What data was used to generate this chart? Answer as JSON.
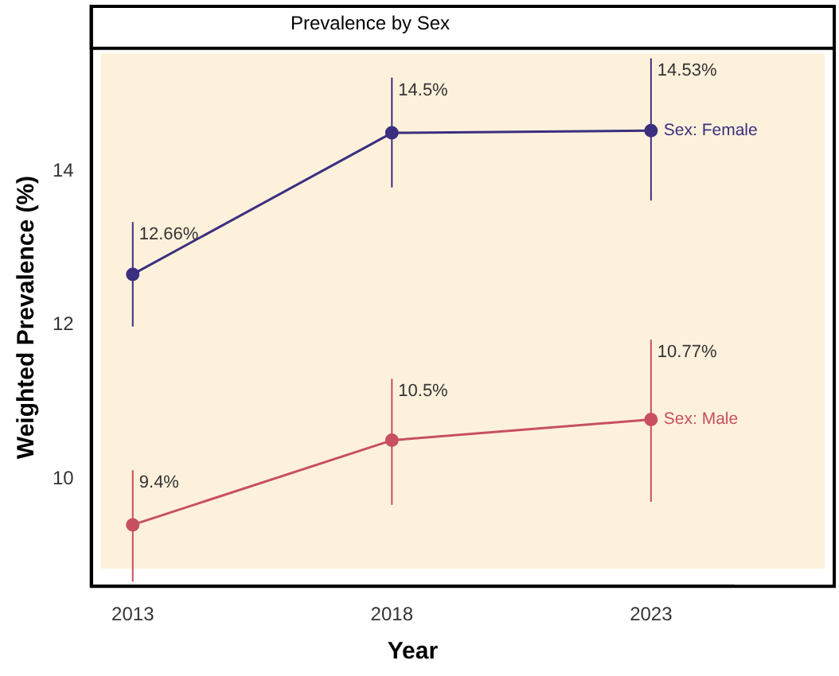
{
  "chart_data": {
    "type": "line",
    "title": "Prevalence by Sex",
    "xlabel": "Year",
    "ylabel": "Weighted Prevalence (%)",
    "x": [
      2013,
      2018,
      2023
    ],
    "xlim": [
      2012.2,
      2024.6
    ],
    "xticks": [
      2013,
      2018,
      2023
    ],
    "ylim": [
      8.6,
      15.6
    ],
    "yticks": [
      10,
      12,
      14
    ],
    "series": [
      {
        "name": "Sex: Female",
        "color": "#3b2f7f",
        "values": [
          12.66,
          14.5,
          14.53
        ],
        "errors": [
          [
            11.98,
            13.34
          ],
          [
            13.79,
            15.22
          ],
          [
            13.62,
            15.47
          ]
        ],
        "value_labels": [
          "12.66%",
          "14.5%",
          "14.53%"
        ]
      },
      {
        "name": "Sex: Male",
        "color": "#c8505e",
        "values": [
          9.4,
          10.5,
          10.77
        ],
        "errors": [
          [
            8.66,
            10.11
          ],
          [
            9.66,
            11.3
          ],
          [
            9.7,
            11.81
          ]
        ],
        "value_labels": [
          "9.4%",
          "10.5%",
          "10.77%"
        ]
      }
    ],
    "marker": "circle",
    "line_style": "solid",
    "grid": false,
    "legend": false
  }
}
